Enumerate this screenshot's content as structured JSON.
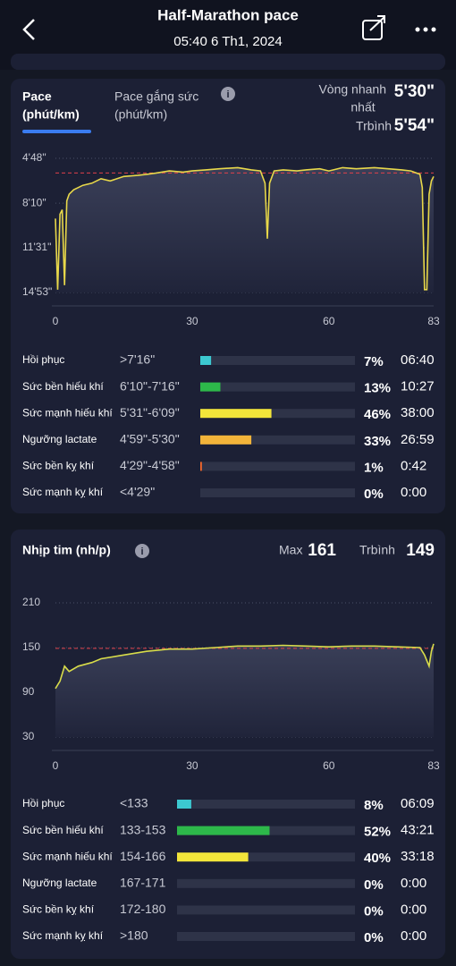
{
  "header": {
    "title": "Half-Marathon pace",
    "subtitle": "05:40 6 Th1, 2024"
  },
  "pace_card": {
    "tabs": [
      {
        "lines": [
          "Pace",
          "(phút/km)"
        ]
      },
      {
        "lines": [
          "Pace gắng sức",
          "(phút/km)"
        ]
      }
    ],
    "fastest_label": [
      "Vòng nhanh",
      "nhất"
    ],
    "fastest": "5'30\"",
    "average_label": "Trbình",
    "average": {
      "value": 354,
      "label": "5'54\""
    },
    "chart": {
      "type": "line",
      "color": "#e8d84a",
      "grid": true,
      "x": [
        0,
        0.5,
        1,
        1.5,
        2,
        2.5,
        3,
        4,
        5,
        6,
        8,
        10,
        12,
        15,
        18,
        20,
        22,
        25,
        28,
        30,
        33,
        36,
        40,
        43,
        45,
        46,
        46.5,
        47,
        48,
        50,
        53,
        55,
        58,
        60,
        63,
        66,
        70,
        73,
        76,
        78,
        80,
        80.5,
        81,
        81.5,
        82,
        82.5,
        83
      ],
      "values": [
        560,
        880,
        540,
        520,
        860,
        480,
        450,
        430,
        420,
        410,
        400,
        380,
        390,
        370,
        365,
        360,
        355,
        345,
        350,
        345,
        340,
        335,
        330,
        340,
        345,
        400,
        650,
        400,
        345,
        340,
        345,
        340,
        335,
        345,
        330,
        335,
        330,
        335,
        340,
        345,
        360,
        420,
        880,
        880,
        450,
        390,
        370
      ],
      "xlim": [
        0,
        83
      ],
      "xticks": [
        0,
        30,
        60,
        83
      ],
      "ylim": [
        893,
        288
      ],
      "yticks": [
        {
          "value": 288,
          "label": "4'48\""
        },
        {
          "value": 490,
          "label": "8'10\""
        },
        {
          "value": 691,
          "label": "11'31\""
        },
        {
          "value": 893,
          "label": "14'53\""
        }
      ]
    },
    "zones": {
      "names": [
        "Hồi phục",
        "Sức bền hiếu khí",
        "Sức mạnh hiếu khí",
        "Ngưỡng lactate",
        "Sức bền kỵ khí",
        "Sức mạnh kỵ khí"
      ],
      "ranges": [
        ">7'16\"",
        "6'10\"-7'16\"",
        "5'31\"-6'09\"",
        "4'59\"-5'30\"",
        "4'29\"-4'58\"",
        "<4'29\""
      ],
      "values": [
        7,
        13,
        46,
        33,
        1,
        0
      ],
      "value_labels": [
        "7%",
        "13%",
        "46%",
        "33%",
        "1%",
        "0%"
      ],
      "times": [
        "06:40",
        "10:27",
        "38:00",
        "26:59",
        "0:42",
        "0:00"
      ],
      "colors": [
        "#3cc8d0",
        "#2db84a",
        "#f2e53a",
        "#f2b43a",
        "#ff6a2a",
        "#e04040"
      ],
      "max": 100
    }
  },
  "hr_card": {
    "title": "Nhịp tim (nh/p)",
    "max_label": "Max",
    "max": 161,
    "average_label": "Trbình",
    "average": 149,
    "chart": {
      "type": "line",
      "color": "#d8dc4a",
      "grid": true,
      "x": [
        0,
        1,
        2,
        3,
        5,
        8,
        10,
        15,
        20,
        25,
        30,
        35,
        40,
        45,
        50,
        55,
        60,
        65,
        70,
        75,
        80,
        81,
        82,
        82.5,
        83
      ],
      "values": [
        95,
        105,
        125,
        118,
        125,
        130,
        135,
        140,
        145,
        148,
        148,
        150,
        152,
        152,
        153,
        152,
        151,
        152,
        152,
        151,
        150,
        140,
        125,
        145,
        155
      ],
      "xlim": [
        0,
        83
      ],
      "xticks": [
        0,
        30,
        60,
        83
      ],
      "ylim": [
        30,
        210
      ],
      "yticks": [
        210,
        150,
        90,
        30
      ]
    },
    "zones": {
      "names": [
        "Hồi phục",
        "Sức bền hiếu khí",
        "Sức mạnh hiếu khí",
        "Ngưỡng lactate",
        "Sức bền kỵ khí",
        "Sức mạnh kỵ khí"
      ],
      "ranges": [
        "<133",
        "133-153",
        "154-166",
        "167-171",
        "172-180",
        ">180"
      ],
      "values": [
        8,
        52,
        40,
        0,
        0,
        0
      ],
      "value_labels": [
        "8%",
        "52%",
        "40%",
        "0%",
        "0%",
        "0%"
      ],
      "times": [
        "06:09",
        "43:21",
        "33:18",
        "0:00",
        "0:00",
        "0:00"
      ],
      "colors": [
        "#3cc8d0",
        "#2db84a",
        "#f2e53a",
        "#f2b43a",
        "#ff6a2a",
        "#e04040"
      ],
      "max": 100
    }
  }
}
